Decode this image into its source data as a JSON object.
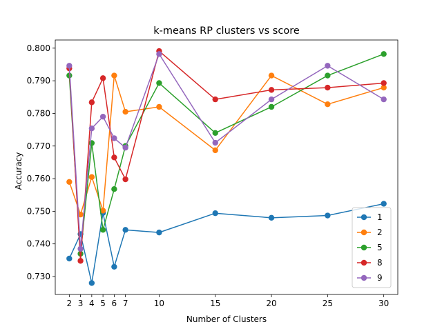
{
  "chart_data": {
    "type": "line",
    "title": "k-means RP clusters vs score",
    "xlabel": "Number of Clusters",
    "ylabel": "Accuracy",
    "x": [
      2,
      3,
      4,
      5,
      6,
      7,
      10,
      15,
      20,
      25,
      30
    ],
    "xticks": [
      2,
      3,
      4,
      5,
      6,
      7,
      10,
      15,
      20,
      25,
      30
    ],
    "xlim": [
      0.75,
      31.25
    ],
    "ylim": [
      0.7245,
      0.8025
    ],
    "yticks": [
      "0.730",
      "0.740",
      "0.750",
      "0.760",
      "0.770",
      "0.780",
      "0.790",
      "0.800"
    ],
    "legend_position": "lower-right",
    "grid": false,
    "series": [
      {
        "name": "1",
        "color": "#1f77b4",
        "values": [
          0.7355,
          0.743,
          0.728,
          0.7495,
          0.733,
          0.7443,
          0.7435,
          0.7494,
          0.748,
          0.7487,
          0.7523
        ]
      },
      {
        "name": "2",
        "color": "#ff7f0e",
        "values": [
          0.759,
          0.749,
          0.7605,
          0.7502,
          0.7916,
          0.7805,
          0.782,
          0.7687,
          0.7916,
          0.7828,
          0.7879
        ]
      },
      {
        "name": "5",
        "color": "#2ca02c",
        "values": [
          0.7916,
          0.737,
          0.7709,
          0.7443,
          0.7568,
          0.77,
          0.7893,
          0.774,
          0.782,
          0.7916,
          0.7982
        ]
      },
      {
        "name": "8",
        "color": "#d62728",
        "values": [
          0.7938,
          0.7348,
          0.7834,
          0.7908,
          0.7665,
          0.7598,
          0.7991,
          0.7843,
          0.7872,
          0.7879,
          0.7893
        ]
      },
      {
        "name": "9",
        "color": "#9467bd",
        "values": [
          0.7946,
          0.7385,
          0.7754,
          0.779,
          0.7724,
          0.7695,
          0.7982,
          0.771,
          0.7843,
          0.7946,
          0.7843
        ]
      }
    ]
  }
}
